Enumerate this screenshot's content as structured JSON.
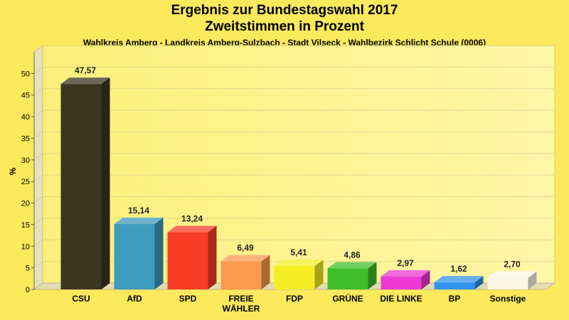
{
  "chart_data": {
    "type": "bar",
    "title": "Ergebnis zur Bundestagswahl 2017",
    "title2": "Zweitstimmen in Prozent",
    "subtitle": "Wahlkreis Amberg - Landkreis Amberg-Sulzbach - Stadt Vilseck - Wahlbezirk Schlicht Schule (0006)",
    "ylabel": "%",
    "ylim": [
      0,
      55
    ],
    "yticks": [
      0,
      5,
      10,
      15,
      20,
      25,
      30,
      35,
      40,
      45,
      50
    ],
    "grid": true,
    "categories": [
      [
        "CSU"
      ],
      [
        "AfD"
      ],
      [
        "SPD"
      ],
      [
        "FREIE",
        "WÄHLER"
      ],
      [
        "FDP"
      ],
      [
        "GRÜNE"
      ],
      [
        "DIE LINKE"
      ],
      [
        "BP"
      ],
      [
        "Sonstige"
      ]
    ],
    "values": [
      47.57,
      15.14,
      13.24,
      6.49,
      5.41,
      4.86,
      2.97,
      1.62,
      2.7
    ],
    "value_labels": [
      "47,57",
      "15,14",
      "13,24",
      "6,49",
      "5,41",
      "4,86",
      "2,97",
      "1,62",
      "2,70"
    ],
    "colors": [
      "#3b3621",
      "#3d9bbd",
      "#f63c25",
      "#f99a50",
      "#f6ee24",
      "#40bd2b",
      "#ec38d4",
      "#3294ee",
      "#fbf8e7"
    ]
  }
}
